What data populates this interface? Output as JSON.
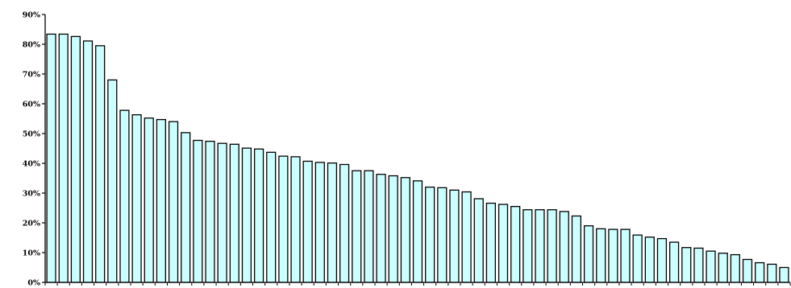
{
  "chart_data": {
    "type": "bar",
    "title": "",
    "xlabel": "",
    "ylabel": "",
    "ylim": [
      0,
      90
    ],
    "yticks": [
      0,
      10,
      20,
      30,
      40,
      50,
      60,
      70,
      80,
      90
    ],
    "ytick_labels": [
      "0%",
      "10%",
      "20%",
      "30%",
      "40%",
      "50%",
      "60%",
      "70%",
      "80%",
      "90%"
    ],
    "grid": false,
    "legend": "none",
    "bar_color": "#ccffff",
    "bar_edge_color": "#000000",
    "values": [
      83.4,
      83.4,
      82.6,
      81.1,
      79.5,
      68.0,
      57.8,
      56.3,
      55.2,
      54.7,
      54.0,
      50.3,
      47.7,
      47.4,
      46.7,
      46.4,
      45.1,
      44.8,
      43.7,
      42.4,
      42.2,
      40.7,
      40.3,
      40.1,
      39.6,
      37.5,
      37.5,
      36.3,
      35.8,
      35.2,
      34.1,
      32.0,
      31.8,
      31.0,
      30.4,
      28.1,
      26.6,
      26.2,
      25.5,
      24.4,
      24.4,
      24.4,
      23.8,
      22.3,
      19.0,
      18.0,
      17.8,
      17.8,
      15.9,
      15.2,
      14.7,
      13.5,
      11.7,
      11.5,
      10.5,
      9.8,
      9.3,
      7.7,
      6.6,
      6.1,
      5.0
    ]
  }
}
